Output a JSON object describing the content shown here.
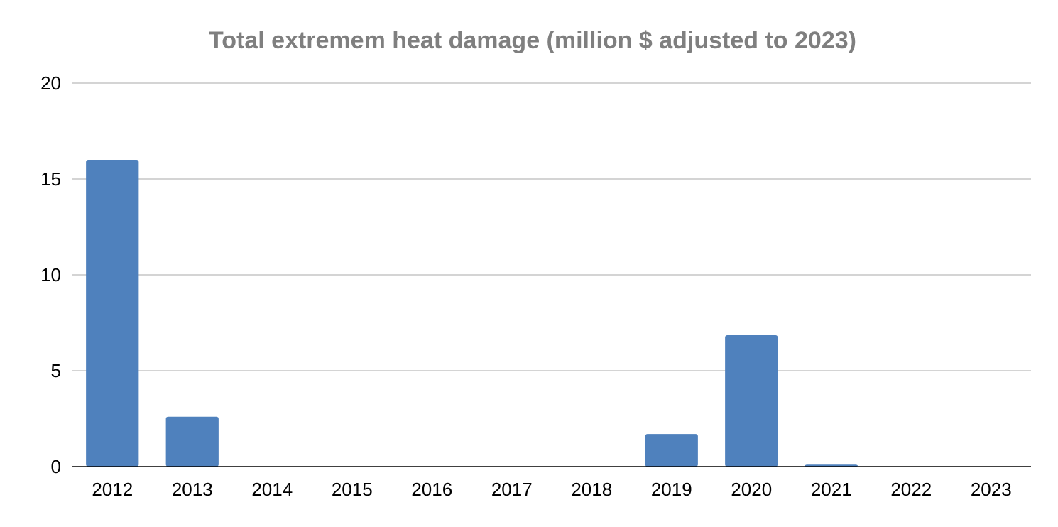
{
  "colors": {
    "bar": "#4f81bd",
    "title": "#7f7f7f",
    "grid": "#c6c6c6",
    "axis": "#000000",
    "text": "#000000"
  },
  "chart_data": {
    "type": "bar",
    "title": "Total extremem heat damage (million $ adjusted to 2023)",
    "xlabel": "",
    "ylabel": "",
    "categories": [
      "2012",
      "2013",
      "2014",
      "2015",
      "2016",
      "2017",
      "2018",
      "2019",
      "2020",
      "2021",
      "2022",
      "2023"
    ],
    "series": [
      {
        "values": [
          16.0,
          2.6,
          0,
          0,
          0,
          0,
          0,
          1.7,
          6.85,
          0.1,
          0,
          0
        ]
      }
    ],
    "ylim": [
      0,
      20
    ],
    "yticks": [
      0,
      5,
      10,
      15,
      20
    ],
    "grid": true,
    "legend": "none"
  }
}
